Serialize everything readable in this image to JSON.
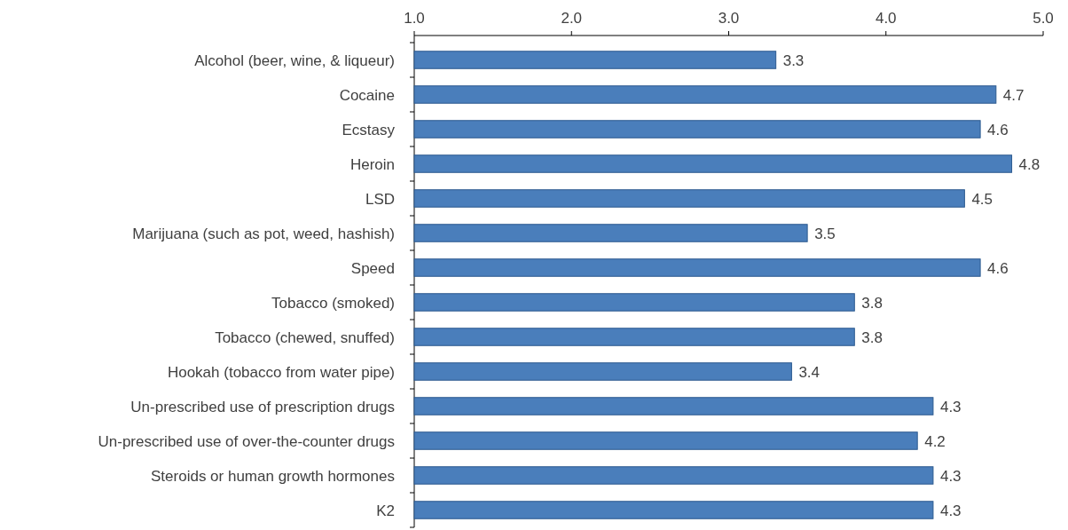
{
  "chart_data": {
    "type": "bar",
    "orientation": "horizontal",
    "categories": [
      "Alcohol (beer, wine, & liqueur)",
      "Cocaine",
      "Ecstasy",
      "Heroin",
      "LSD",
      "Marijuana (such as pot, weed, hashish)",
      "Speed",
      "Tobacco (smoked)",
      "Tobacco (chewed, snuffed)",
      "Hookah (tobacco from water pipe)",
      "Un-prescribed use of prescription drugs",
      "Un-prescribed use of over-the-counter drugs",
      "Steroids or human growth hormones",
      "K2"
    ],
    "values": [
      3.3,
      4.7,
      4.6,
      4.8,
      4.5,
      3.5,
      4.6,
      3.8,
      3.8,
      3.4,
      4.3,
      4.2,
      4.3,
      4.3
    ],
    "color": "#4a7ebb",
    "xlim": [
      1,
      5
    ],
    "xticks": [
      {
        "value": 1,
        "label": "1.0"
      },
      {
        "value": 2,
        "label": "2.0"
      },
      {
        "value": 3,
        "label": "3.0"
      },
      {
        "value": 4,
        "label": "4.0"
      },
      {
        "value": 5,
        "label": "5.0"
      }
    ],
    "data_labels": true,
    "grid": false
  }
}
